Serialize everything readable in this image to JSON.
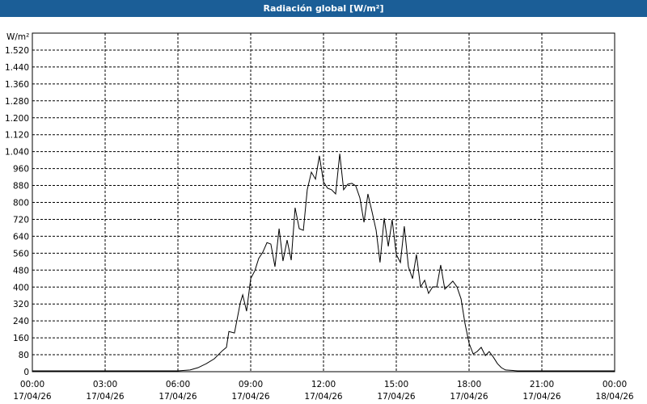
{
  "chart_data": {
    "type": "line",
    "title": "Radiación global [W/m²]",
    "y_label": "W/m²",
    "x": [
      0,
      1,
      2,
      3,
      4,
      5,
      6,
      6.5,
      6.83,
      7.17,
      7.5,
      7.83,
      8,
      8.1,
      8.33,
      8.57,
      8.67,
      8.83,
      9,
      9.17,
      9.33,
      9.5,
      9.67,
      9.83,
      10,
      10.17,
      10.33,
      10.5,
      10.67,
      10.83,
      11,
      11.17,
      11.33,
      11.5,
      11.67,
      11.83,
      12,
      12.17,
      12.33,
      12.5,
      12.67,
      12.83,
      13,
      13.17,
      13.33,
      13.5,
      13.67,
      13.83,
      14,
      14.17,
      14.33,
      14.5,
      14.67,
      14.83,
      15,
      15.17,
      15.33,
      15.5,
      15.67,
      15.83,
      16,
      16.17,
      16.33,
      16.5,
      16.67,
      16.83,
      17,
      17.17,
      17.33,
      17.5,
      17.67,
      17.83,
      18,
      18.17,
      18.33,
      18.5,
      18.67,
      18.83,
      19,
      19.17,
      19.33,
      19.5,
      20,
      21,
      22,
      23,
      24
    ],
    "series": [
      {
        "name": "Radiación global",
        "color": "#000000",
        "values": [
          4,
          4,
          4,
          4,
          4,
          4,
          4,
          8,
          19,
          38,
          61,
          99,
          115,
          190,
          183,
          325,
          363,
          286,
          440,
          477,
          535,
          565,
          610,
          603,
          496,
          676,
          523,
          622,
          527,
          775,
          676,
          668,
          860,
          943,
          910,
          1020,
          897,
          867,
          860,
          840,
          1030,
          860,
          886,
          890,
          878,
          821,
          706,
          840,
          756,
          668,
          516,
          726,
          592,
          718,
          554,
          516,
          687,
          496,
          440,
          554,
          401,
          432,
          370,
          401,
          401,
          504,
          390,
          409,
          428,
          401,
          344,
          229,
          134,
          84,
          95,
          115,
          76,
          95,
          69,
          38,
          19,
          8,
          4,
          4,
          4,
          4,
          4
        ]
      }
    ],
    "xlim": [
      0,
      24
    ],
    "ylim": [
      0,
      1600
    ],
    "xticks": [
      {
        "value": 0,
        "label": "00:00",
        "date": "17/04/26"
      },
      {
        "value": 3,
        "label": "03:00",
        "date": "17/04/26"
      },
      {
        "value": 6,
        "label": "06:00",
        "date": "17/04/26"
      },
      {
        "value": 9,
        "label": "09:00",
        "date": "17/04/26"
      },
      {
        "value": 12,
        "label": "12:00",
        "date": "17/04/26"
      },
      {
        "value": 15,
        "label": "15:00",
        "date": "17/04/26"
      },
      {
        "value": 18,
        "label": "18:00",
        "date": "17/04/26"
      },
      {
        "value": 21,
        "label": "21:00",
        "date": "17/04/26"
      },
      {
        "value": 24,
        "label": "00:00",
        "date": "18/04/26"
      }
    ],
    "yticks": [
      0,
      80,
      160,
      240,
      320,
      400,
      480,
      560,
      640,
      720,
      800,
      880,
      960,
      {
        "value": 1040,
        "label": "1.040"
      },
      {
        "value": 1120,
        "label": "1.120"
      },
      {
        "value": 1200,
        "label": "1.200"
      },
      {
        "value": 1280,
        "label": "1.280"
      },
      {
        "value": 1360,
        "label": "1.360"
      },
      {
        "value": 1440,
        "label": "1.440"
      },
      {
        "value": 1520,
        "label": "1.520"
      }
    ],
    "grid": true
  }
}
